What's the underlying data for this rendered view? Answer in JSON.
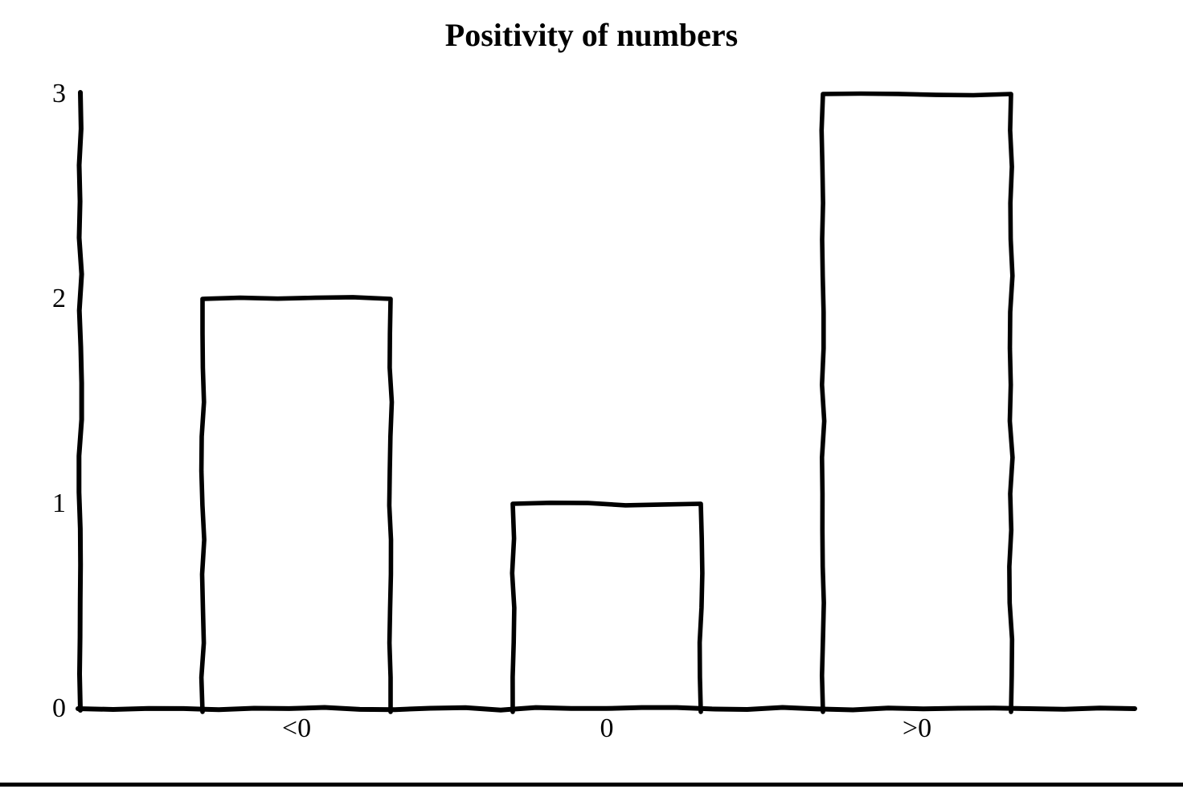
{
  "page": {
    "background_color": "#ffffff",
    "bottom_border_color": "#000000"
  },
  "chart_data": {
    "type": "bar",
    "title": "Positivity of numbers",
    "categories": [
      "<0",
      "0",
      ">0"
    ],
    "values": [
      2,
      1,
      3
    ],
    "xlabel": "",
    "ylabel": "",
    "yticks": [
      "0",
      "1",
      "2",
      "3"
    ],
    "ylim": [
      0,
      3
    ],
    "grid": false,
    "legend": "none",
    "style": "hand-drawn",
    "line_color": "#000000",
    "bar_fill": "#ffffff",
    "text_color": "#000000",
    "background": "#ffffff"
  }
}
